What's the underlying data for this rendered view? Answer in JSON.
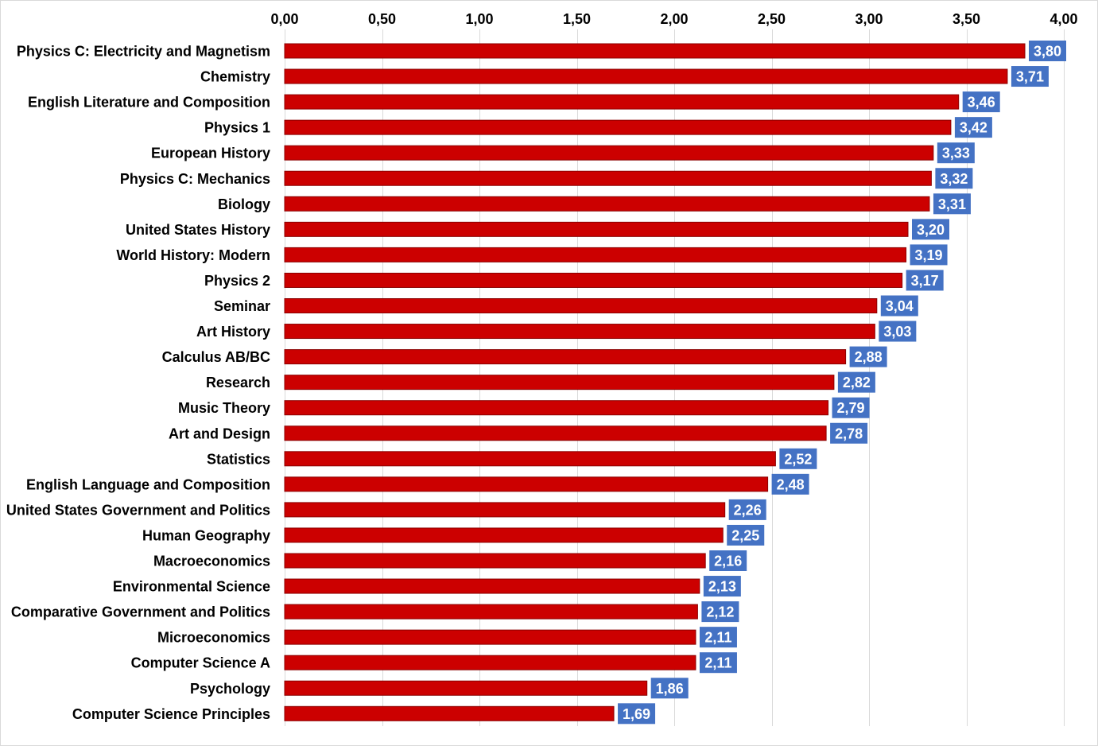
{
  "chart_data": {
    "type": "bar",
    "orientation": "horizontal",
    "title": "",
    "xlabel": "",
    "ylabel": "",
    "xlim": [
      0,
      4
    ],
    "x_tick_values": [
      0,
      0.5,
      1,
      1.5,
      2,
      2.5,
      3,
      3.5,
      4
    ],
    "x_tick_labels": [
      "0,00",
      "0,50",
      "1,00",
      "1,50",
      "2,00",
      "2,50",
      "3,00",
      "3,50",
      "4,00"
    ],
    "x_axis_position": "top",
    "grid": "vertical",
    "legend": "none",
    "colors": {
      "bar": "#cc0000",
      "bar_edge": "#8b0000",
      "label_background": "#4472c4",
      "label_text": "#ffffff",
      "grid": "#d9d9d9"
    },
    "categories": [
      "Physics C: Electricity and Magnetism",
      "Chemistry",
      "English Literature and Composition",
      "Physics 1",
      "European History",
      "Physics C: Mechanics",
      "Biology",
      "United States History",
      "World History: Modern",
      "Physics 2",
      "Seminar",
      "Art History",
      "Calculus AB/BC",
      "Research",
      "Music Theory",
      "Art and Design",
      "Statistics",
      "English Language and Composition",
      "United States Government and Politics",
      "Human Geography",
      "Macroeconomics",
      "Environmental Science",
      "Comparative Government and Politics",
      "Microeconomics",
      "Computer Science A",
      "Psychology",
      "Computer Science Principles"
    ],
    "values": [
      3.8,
      3.71,
      3.46,
      3.42,
      3.33,
      3.32,
      3.31,
      3.2,
      3.19,
      3.17,
      3.04,
      3.03,
      2.88,
      2.82,
      2.79,
      2.78,
      2.52,
      2.48,
      2.26,
      2.25,
      2.16,
      2.13,
      2.12,
      2.11,
      2.11,
      1.86,
      1.69
    ],
    "value_labels": [
      "3,80",
      "3,71",
      "3,46",
      "3,42",
      "3,33",
      "3,32",
      "3,31",
      "3,20",
      "3,19",
      "3,17",
      "3,04",
      "3,03",
      "2,88",
      "2,82",
      "2,79",
      "2,78",
      "2,52",
      "2,48",
      "2,26",
      "2,25",
      "2,16",
      "2,13",
      "2,12",
      "2,11",
      "2,11",
      "1,86",
      "1,69"
    ]
  }
}
